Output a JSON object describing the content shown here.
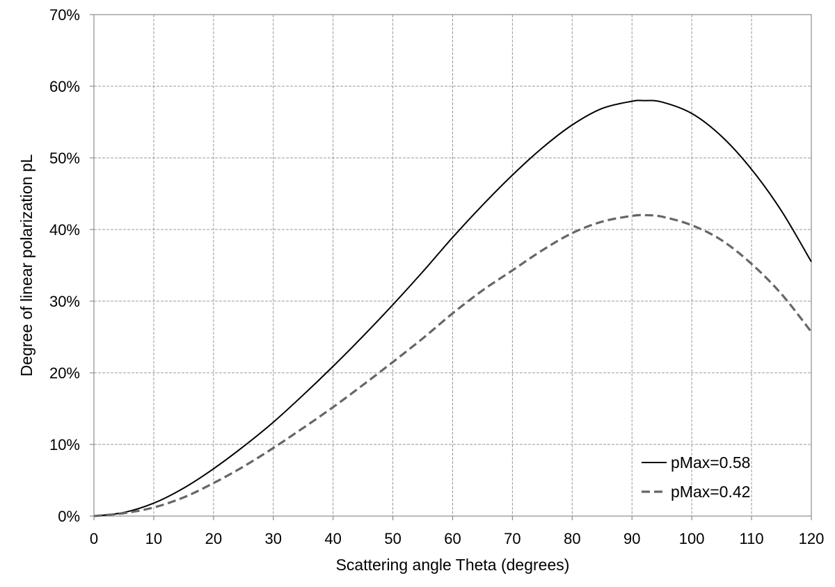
{
  "chart_data": {
    "type": "line",
    "xlabel": "Scattering angle Theta (degrees)",
    "ylabel": "Degree of linear polarization pL",
    "xlim": [
      0,
      120
    ],
    "ylim": [
      0,
      0.7
    ],
    "x_ticks": [
      0,
      10,
      20,
      30,
      40,
      50,
      60,
      70,
      80,
      90,
      100,
      110,
      120
    ],
    "x_tick_labels": [
      "0",
      "10",
      "20",
      "30",
      "40",
      "50",
      "60",
      "70",
      "80",
      "90",
      "100",
      "110",
      "120"
    ],
    "y_ticks": [
      0,
      0.1,
      0.2,
      0.3,
      0.4,
      0.5,
      0.6,
      0.7
    ],
    "y_tick_labels": [
      "0%",
      "10%",
      "20%",
      "30%",
      "40%",
      "50%",
      "60%",
      "70%"
    ],
    "grid": true,
    "legend_position": "bottom-right",
    "x": [
      0,
      5,
      10,
      15,
      20,
      25,
      30,
      35,
      40,
      45,
      50,
      55,
      60,
      65,
      70,
      75,
      80,
      85,
      90,
      92,
      95,
      100,
      105,
      110,
      115,
      120
    ],
    "series": [
      {
        "name": "pMax=0.58",
        "style": "solid",
        "color": "#000000",
        "values": [
          0.0,
          0.005,
          0.018,
          0.039,
          0.066,
          0.097,
          0.131,
          0.169,
          0.209,
          0.251,
          0.295,
          0.341,
          0.389,
          0.434,
          0.476,
          0.514,
          0.546,
          0.569,
          0.579,
          0.58,
          0.578,
          0.562,
          0.53,
          0.484,
          0.426,
          0.355
        ]
      },
      {
        "name": "pMax=0.42",
        "style": "dashed",
        "color": "#666666",
        "values": [
          0.0,
          0.004,
          0.012,
          0.026,
          0.046,
          0.069,
          0.095,
          0.123,
          0.152,
          0.183,
          0.215,
          0.248,
          0.283,
          0.315,
          0.343,
          0.371,
          0.395,
          0.411,
          0.419,
          0.42,
          0.418,
          0.406,
          0.385,
          0.352,
          0.31,
          0.257
        ]
      }
    ]
  }
}
